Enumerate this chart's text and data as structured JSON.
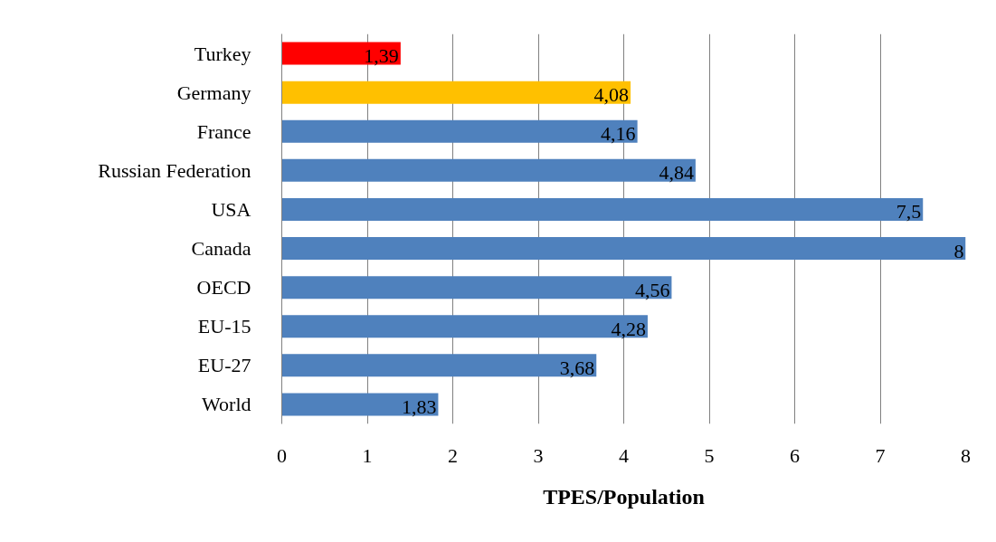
{
  "chart_data": {
    "type": "bar",
    "orientation": "horizontal",
    "xlabel": "TPES/Population",
    "categories": [
      "Turkey",
      "Germany",
      "France",
      "Russian Federation",
      "USA",
      "Canada",
      "OECD",
      "EU-15",
      "EU-27",
      "World"
    ],
    "values": [
      1.39,
      4.08,
      4.16,
      4.84,
      7.5,
      8,
      4.56,
      4.28,
      3.68,
      1.83
    ],
    "colors": [
      "#ff0000",
      "#ffc000",
      "#4f81bd",
      "#4f81bd",
      "#4f81bd",
      "#4f81bd",
      "#4f81bd",
      "#4f81bd",
      "#4f81bd",
      "#4f81bd"
    ],
    "value_labels": [
      "1,39",
      "4,08",
      "4,16",
      "4,84",
      "7,5",
      "8",
      "4,56",
      "4,28",
      "3,68",
      "1,83"
    ],
    "xlim": [
      0,
      8
    ],
    "xticks": [
      0,
      1,
      2,
      3,
      4,
      5,
      6,
      7,
      8
    ],
    "grid": "x"
  }
}
